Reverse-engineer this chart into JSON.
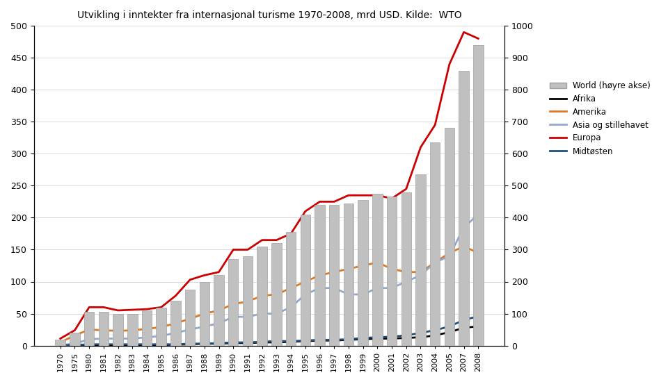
{
  "title": "Utvikling i inntekter fra internasjonal turisme 1970-2008, mrd USD. Kilde:  WTO",
  "years": [
    1970,
    1975,
    1980,
    1981,
    1982,
    1983,
    1984,
    1985,
    1986,
    1987,
    1988,
    1989,
    1990,
    1991,
    1992,
    1993,
    1994,
    1995,
    1996,
    1997,
    1998,
    1999,
    2000,
    2001,
    2002,
    2003,
    2004,
    2005,
    2007,
    2008
  ],
  "world_bars": [
    18,
    40,
    105,
    105,
    98,
    98,
    109,
    118,
    140,
    175,
    200,
    220,
    270,
    280,
    310,
    320,
    355,
    410,
    440,
    440,
    445,
    455,
    475,
    465,
    480,
    535,
    635,
    680,
    860,
    940
  ],
  "africa": [
    0.5,
    1,
    1,
    1,
    1,
    1,
    1,
    1,
    1.5,
    2,
    3,
    3,
    4,
    4,
    5,
    5,
    6,
    7,
    8,
    8,
    9,
    10,
    11,
    11,
    12,
    13,
    16,
    21,
    28,
    30
  ],
  "america": [
    5,
    16,
    25,
    24,
    23,
    24,
    26,
    29,
    35,
    42,
    50,
    55,
    65,
    69,
    78,
    80,
    90,
    100,
    110,
    115,
    120,
    125,
    130,
    120,
    115,
    115,
    130,
    145,
    155,
    145
  ],
  "asia_pacific": [
    1,
    3,
    10,
    11,
    11,
    11,
    13,
    15,
    20,
    25,
    30,
    35,
    45,
    45,
    50,
    50,
    60,
    80,
    90,
    90,
    80,
    80,
    90,
    90,
    100,
    110,
    130,
    140,
    185,
    205
  ],
  "europe": [
    11,
    24,
    60,
    60,
    55,
    56,
    57,
    60,
    78,
    103,
    110,
    115,
    150,
    150,
    165,
    165,
    175,
    210,
    225,
    225,
    235,
    235,
    235,
    230,
    245,
    310,
    345,
    440,
    490,
    480
  ],
  "midtost": [
    0.5,
    1,
    2,
    2,
    2,
    2,
    2,
    2,
    2,
    3,
    3,
    4,
    5,
    5,
    6,
    7,
    7,
    8,
    9,
    9,
    10,
    12,
    13,
    14,
    16,
    20,
    24,
    30,
    40,
    46
  ],
  "left_ylim": [
    0,
    500
  ],
  "right_ylim": [
    0,
    1000
  ],
  "left_yticks": [
    0,
    50,
    100,
    150,
    200,
    250,
    300,
    350,
    400,
    450,
    500
  ],
  "right_yticks": [
    0,
    100,
    200,
    300,
    400,
    500,
    600,
    700,
    800,
    900,
    1000
  ],
  "bar_color": "#c0c0c0",
  "bar_edgecolor": "#a0a0a0",
  "africa_color": "#000000",
  "america_color": "#e07820",
  "asia_color": "#92a8d1",
  "europe_color": "#cc0000",
  "midtost_color": "#1f4e79",
  "legend_labels": [
    "World (høyre akse)",
    "Afrika",
    "Amerika",
    "Asia og stillehavet",
    "Europa",
    "Midtøsten"
  ],
  "title_fontsize": 10
}
